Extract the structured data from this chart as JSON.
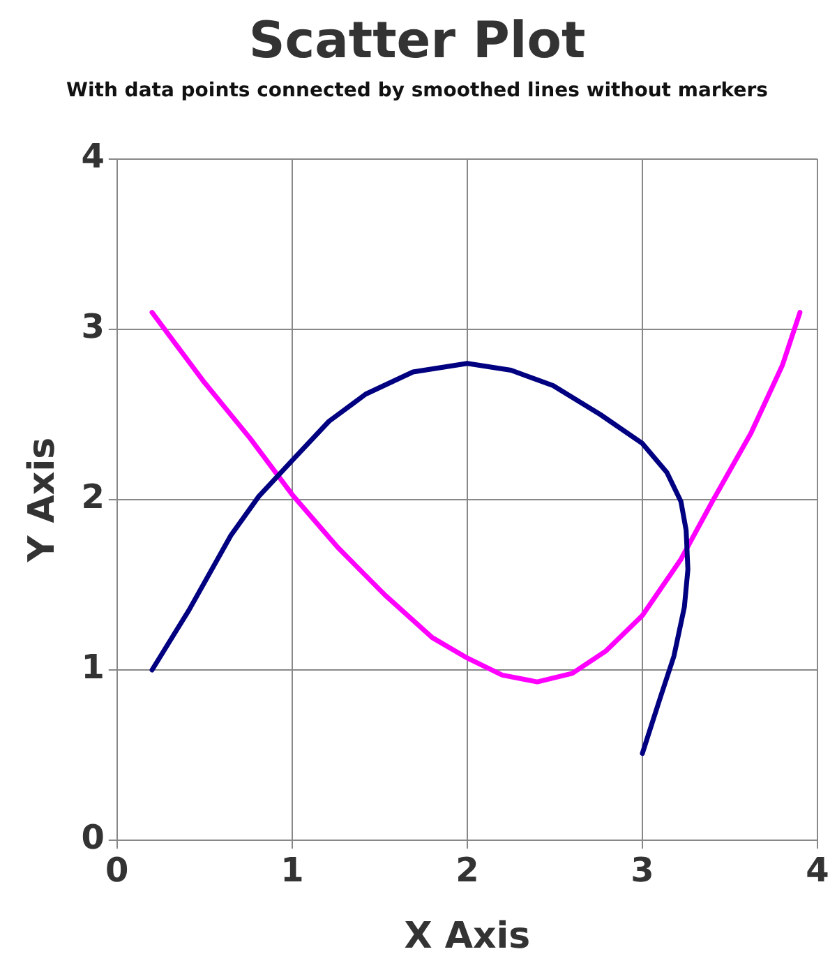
{
  "chart_data": {
    "type": "line",
    "title": "Scatter Plot",
    "subtitle": "With data points connected by smoothed lines without markers",
    "xlabel": "X Axis",
    "ylabel": "Y Axis",
    "xlim": [
      0,
      4
    ],
    "xticks": [
      0,
      1,
      2,
      3,
      4
    ],
    "ylim": [
      0,
      4
    ],
    "yticks": [
      0,
      1,
      2,
      3,
      4
    ],
    "grid": true,
    "legend": false,
    "marker": "none",
    "line_style": "solid",
    "series": [
      {
        "color": "#000080",
        "x": [
          0.2,
          0.41,
          0.65,
          0.81,
          1.0,
          1.21,
          1.42,
          1.69,
          2.0,
          2.25,
          2.49,
          2.76,
          3.0,
          3.14,
          3.22,
          3.25,
          3.26,
          3.24,
          3.18,
          3.1,
          3.0
        ],
        "values": [
          1.0,
          1.35,
          1.79,
          2.02,
          2.23,
          2.46,
          2.62,
          2.75,
          2.8,
          2.76,
          2.67,
          2.5,
          2.33,
          2.16,
          1.99,
          1.82,
          1.59,
          1.37,
          1.08,
          0.83,
          0.51
        ]
      },
      {
        "color": "#ff00ff",
        "x": [
          0.2,
          0.49,
          0.76,
          1.0,
          1.26,
          1.53,
          1.8,
          2.0,
          2.2,
          2.4,
          2.6,
          2.79,
          3.0,
          3.22,
          3.4,
          3.62,
          3.8,
          3.9
        ],
        "values": [
          3.1,
          2.7,
          2.36,
          2.03,
          1.72,
          1.44,
          1.19,
          1.07,
          0.97,
          0.93,
          0.98,
          1.11,
          1.32,
          1.65,
          1.99,
          2.39,
          2.79,
          3.1
        ]
      }
    ]
  }
}
